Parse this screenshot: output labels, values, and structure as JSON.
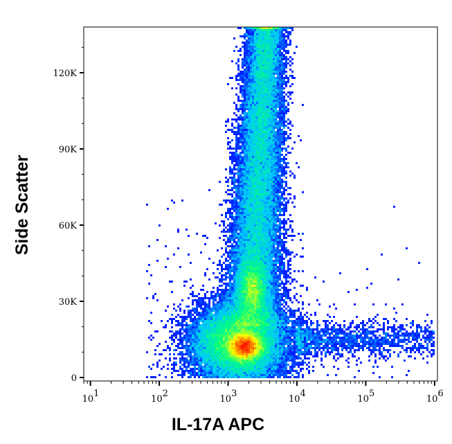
{
  "chart_data": {
    "type": "scatter",
    "xlabel": "IL-17A APC",
    "ylabel": "Side Scatter",
    "x_scale": "log",
    "xlim": [
      8,
      1100000
    ],
    "ylim": [
      0,
      138000
    ],
    "x_ticks": [
      {
        "value": 10,
        "base": "10",
        "exp": "1"
      },
      {
        "value": 100,
        "base": "10",
        "exp": "2"
      },
      {
        "value": 1000,
        "base": "10",
        "exp": "3"
      },
      {
        "value": 10000,
        "base": "10",
        "exp": "4"
      },
      {
        "value": 100000,
        "base": "10",
        "exp": "5"
      },
      {
        "value": 1000000,
        "base": "10",
        "exp": "6"
      }
    ],
    "y_ticks": [
      {
        "value": 0,
        "label": "0"
      },
      {
        "value": 30000,
        "label": "30K"
      },
      {
        "value": 60000,
        "label": "60K"
      },
      {
        "value": 90000,
        "label": "90K"
      },
      {
        "value": 120000,
        "label": "120K"
      }
    ],
    "colormap": [
      "#0000ff",
      "#00c8ff",
      "#00ff80",
      "#ffff00",
      "#ff0000"
    ],
    "populations": [
      {
        "x_log10_mean": 3.25,
        "x_log10_sd": 0.12,
        "y_mean": 12000,
        "y_sd": 2800
      },
      {
        "x_log10_mean": 3.15,
        "x_log10_sd": 0.28,
        "y_mean": 14000,
        "y_sd": 7000
      },
      {
        "x_log10_mean": 3.5,
        "x_log10_sd": 0.15,
        "y_range": [
          20000,
          138000
        ]
      },
      {
        "x_log10_mean": 3.35,
        "x_log10_sd": 0.1,
        "y_mean": 35000,
        "y_sd": 6000
      },
      {
        "x_log10_range": [
          4.0,
          6.0
        ],
        "y_mean": 15000,
        "y_sd": 3500
      }
    ],
    "grid": false,
    "legend": "none"
  }
}
